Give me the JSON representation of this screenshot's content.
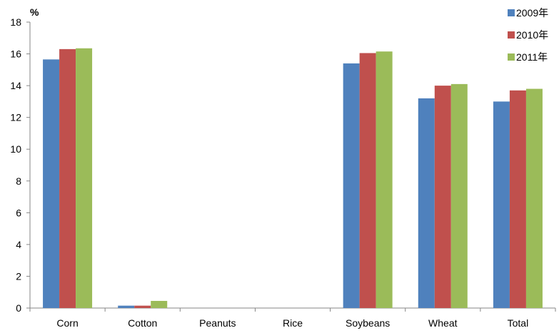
{
  "chart_data": {
    "type": "bar",
    "ylabel": "%",
    "categories": [
      "Corn",
      "Cotton",
      "Peanuts",
      "Rice",
      "Soybeans",
      "Wheat",
      "Total"
    ],
    "series": [
      {
        "name": "2009年",
        "color": "#4f81bd",
        "values": [
          15.65,
          0.15,
          0,
          0,
          15.4,
          13.2,
          13.0
        ]
      },
      {
        "name": "2010年",
        "color": "#c0504d",
        "values": [
          16.3,
          0.15,
          0,
          0,
          16.05,
          14.0,
          13.7
        ]
      },
      {
        "name": "2011年",
        "color": "#9bbb59",
        "values": [
          16.35,
          0.45,
          0,
          0,
          16.15,
          14.1,
          13.8
        ]
      }
    ],
    "ylim": [
      0,
      18
    ],
    "yticks": [
      0,
      2,
      4,
      6,
      8,
      10,
      12,
      14,
      16,
      18
    ],
    "grid": false,
    "legend": "top-right"
  }
}
